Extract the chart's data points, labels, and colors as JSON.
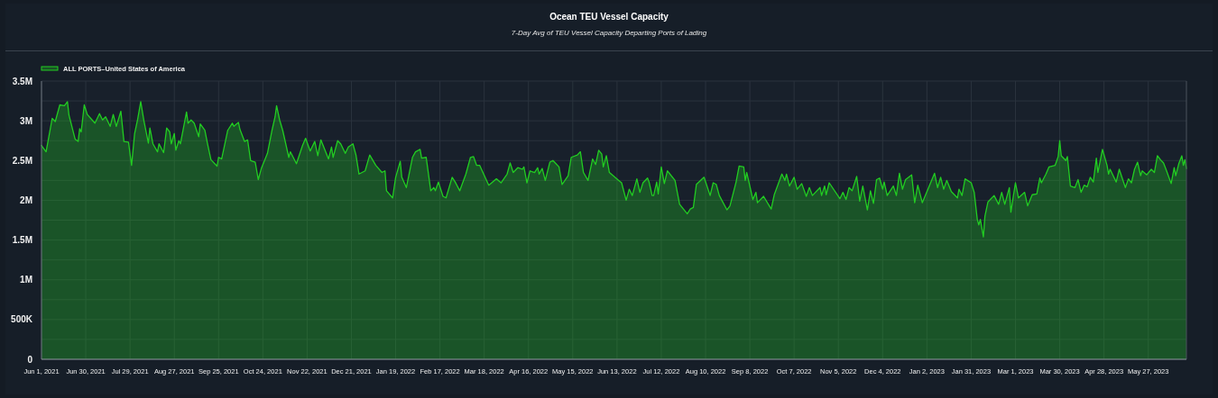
{
  "chart_data": {
    "type": "area",
    "title": "Ocean TEU Vessel Capacity",
    "subtitle": "7-Day Avg of TEU Vessel Capacity Departing Ports of Lading",
    "x": [
      "2021-06-01",
      "2021-06-04",
      "2021-06-08",
      "2021-06-10",
      "2021-06-13",
      "2021-06-16",
      "2021-06-18",
      "2021-06-19",
      "2021-06-23",
      "2021-06-25",
      "2021-06-26",
      "2021-06-27",
      "2021-06-29",
      "2021-07-01",
      "2021-07-06",
      "2021-07-09",
      "2021-07-11",
      "2021-07-13",
      "2021-07-16",
      "2021-07-18",
      "2021-07-20",
      "2021-07-23",
      "2021-07-25",
      "2021-07-28",
      "2021-07-30",
      "2021-08-01",
      "2021-08-03",
      "2021-08-05",
      "2021-08-07",
      "2021-08-10",
      "2021-08-11",
      "2021-08-13",
      "2021-08-16",
      "2021-08-17",
      "2021-08-20",
      "2021-08-22",
      "2021-08-24",
      "2021-08-25",
      "2021-08-27",
      "2021-08-28",
      "2021-08-30",
      "2021-08-31",
      "2021-09-04",
      "2021-09-05",
      "2021-09-07",
      "2021-09-09",
      "2021-09-12",
      "2021-09-13",
      "2021-09-16",
      "2021-09-18",
      "2021-09-20",
      "2021-09-24",
      "2021-09-25",
      "2021-09-27",
      "2021-10-01",
      "2021-10-04",
      "2021-10-05",
      "2021-10-08",
      "2021-10-09",
      "2021-10-12",
      "2021-10-14",
      "2021-10-16",
      "2021-10-19",
      "2021-10-21",
      "2021-10-23",
      "2021-10-27",
      "2021-10-30",
      "2021-11-01",
      "2021-11-02",
      "2021-11-04",
      "2021-11-06",
      "2021-11-10",
      "2021-11-11",
      "2021-11-15",
      "2021-11-19",
      "2021-11-21",
      "2021-11-24",
      "2021-11-27",
      "2021-11-29",
      "2021-12-01",
      "2021-12-06",
      "2021-12-08",
      "2021-12-09",
      "2021-12-12",
      "2021-12-14",
      "2021-12-17",
      "2021-12-19",
      "2021-12-22",
      "2021-12-24",
      "2021-12-26",
      "2021-12-30",
      "2022-01-02",
      "2022-01-06",
      "2022-01-10",
      "2022-01-12",
      "2022-01-13",
      "2022-01-17",
      "2022-01-19",
      "2022-01-22",
      "2022-01-23",
      "2022-01-26",
      "2022-01-30",
      "2022-02-01",
      "2022-02-04",
      "2022-02-05",
      "2022-02-08",
      "2022-02-11",
      "2022-02-13",
      "2022-02-14",
      "2022-02-16",
      "2022-02-19",
      "2022-02-21",
      "2022-02-25",
      "2022-02-27",
      "2022-03-02",
      "2022-03-06",
      "2022-03-09",
      "2022-03-11",
      "2022-03-13",
      "2022-03-15",
      "2022-03-21",
      "2022-03-26",
      "2022-03-29",
      "2022-04-02",
      "2022-04-04",
      "2022-04-06",
      "2022-04-09",
      "2022-04-12",
      "2022-04-13",
      "2022-04-15",
      "2022-04-17",
      "2022-04-20",
      "2022-04-22",
      "2022-04-23",
      "2022-04-25",
      "2022-04-27",
      "2022-04-30",
      "2022-05-02",
      "2022-05-04",
      "2022-05-06",
      "2022-05-08",
      "2022-05-12",
      "2022-05-14",
      "2022-05-18",
      "2022-05-20",
      "2022-05-22",
      "2022-05-25",
      "2022-05-28",
      "2022-05-30",
      "2022-06-01",
      "2022-06-03",
      "2022-06-04",
      "2022-06-06",
      "2022-06-08",
      "2022-06-14",
      "2022-06-16",
      "2022-06-19",
      "2022-06-21",
      "2022-06-23",
      "2022-06-26",
      "2022-06-28",
      "2022-06-30",
      "2022-07-03",
      "2022-07-04",
      "2022-07-06",
      "2022-07-07",
      "2022-07-09",
      "2022-07-10",
      "2022-07-12",
      "2022-07-14",
      "2022-07-16",
      "2022-07-21",
      "2022-07-24",
      "2022-07-29",
      "2022-07-31",
      "2022-08-02",
      "2022-08-04",
      "2022-08-09",
      "2022-08-13",
      "2022-08-15",
      "2022-08-17",
      "2022-08-19",
      "2022-08-24",
      "2022-08-26",
      "2022-08-30",
      "2022-09-01",
      "2022-09-04",
      "2022-09-05",
      "2022-09-06",
      "2022-09-10",
      "2022-09-12",
      "2022-09-13",
      "2022-09-17",
      "2022-09-22",
      "2022-09-24",
      "2022-09-29",
      "2022-10-01",
      "2022-10-02",
      "2022-10-04",
      "2022-10-07",
      "2022-10-09",
      "2022-10-12",
      "2022-10-15",
      "2022-10-17",
      "2022-10-19",
      "2022-10-24",
      "2022-10-25",
      "2022-10-27",
      "2022-10-28",
      "2022-10-30",
      "2022-11-06",
      "2022-11-08",
      "2022-11-10",
      "2022-11-12",
      "2022-11-14",
      "2022-11-17",
      "2022-11-19",
      "2022-11-21",
      "2022-11-24",
      "2022-11-26",
      "2022-11-28",
      "2022-11-30",
      "2022-12-02",
      "2022-12-04",
      "2022-12-05",
      "2022-12-07",
      "2022-12-11",
      "2022-12-13",
      "2022-12-15",
      "2022-12-17",
      "2022-12-19",
      "2022-12-23",
      "2022-12-25",
      "2022-12-27",
      "2022-12-30",
      "2023-01-04",
      "2023-01-07",
      "2023-01-09",
      "2023-01-11",
      "2023-01-13",
      "2023-01-15",
      "2023-01-18",
      "2023-01-22",
      "2023-01-23",
      "2023-01-25",
      "2023-01-27",
      "2023-01-31",
      "2023-02-02",
      "2023-02-04",
      "2023-02-05",
      "2023-02-06",
      "2023-02-08",
      "2023-02-09",
      "2023-02-11",
      "2023-02-15",
      "2023-02-18",
      "2023-02-20",
      "2023-02-22",
      "2023-02-25",
      "2023-02-26",
      "2023-03-01",
      "2023-03-03",
      "2023-03-07",
      "2023-03-09",
      "2023-03-12",
      "2023-03-15",
      "2023-03-17",
      "2023-03-18",
      "2023-03-21",
      "2023-03-23",
      "2023-03-27",
      "2023-03-29",
      "2023-03-30",
      "2023-03-31",
      "2023-04-03",
      "2023-04-04",
      "2023-04-06",
      "2023-04-09",
      "2023-04-11",
      "2023-04-13",
      "2023-04-15",
      "2023-04-17",
      "2023-04-19",
      "2023-04-21",
      "2023-04-23",
      "2023-04-24",
      "2023-04-27",
      "2023-04-30",
      "2023-05-01",
      "2023-05-02",
      "2023-05-06",
      "2023-05-08",
      "2023-05-12",
      "2023-05-14",
      "2023-05-16",
      "2023-05-18",
      "2023-05-20",
      "2023-05-22",
      "2023-05-23",
      "2023-05-26",
      "2023-05-29",
      "2023-05-31",
      "2023-06-02",
      "2023-06-04",
      "2023-06-06",
      "2023-06-08",
      "2023-06-11",
      "2023-06-13",
      "2023-06-14",
      "2023-06-16",
      "2023-06-18",
      "2023-06-19",
      "2023-06-20",
      "2023-06-21"
    ],
    "series": [
      {
        "name": "ALL PORTS–United States of America",
        "color": "#22cc22",
        "values": [
          2690000,
          2610000,
          3030000,
          2990000,
          3200000,
          3190000,
          3240000,
          3070000,
          2770000,
          2740000,
          2900000,
          2860000,
          3200000,
          3080000,
          2970000,
          3090000,
          3010000,
          3050000,
          2930000,
          3080000,
          2930000,
          3120000,
          2740000,
          2730000,
          2440000,
          2840000,
          3020000,
          3240000,
          3010000,
          2720000,
          2910000,
          2710000,
          2610000,
          2710000,
          2600000,
          2910000,
          2860000,
          2710000,
          2840000,
          2630000,
          2750000,
          2710000,
          3110000,
          2970000,
          3010000,
          2970000,
          2800000,
          2960000,
          2880000,
          2690000,
          2510000,
          2430000,
          2540000,
          2520000,
          2880000,
          2970000,
          2930000,
          2980000,
          2890000,
          2740000,
          2760000,
          2500000,
          2480000,
          2260000,
          2400000,
          2590000,
          2880000,
          3050000,
          3190000,
          3010000,
          2880000,
          2540000,
          2610000,
          2460000,
          2690000,
          2780000,
          2620000,
          2740000,
          2560000,
          2760000,
          2520000,
          2670000,
          2540000,
          2750000,
          2710000,
          2590000,
          2670000,
          2710000,
          2570000,
          2330000,
          2370000,
          2570000,
          2440000,
          2350000,
          2370000,
          2120000,
          2030000,
          2290000,
          2490000,
          2290000,
          2160000,
          2540000,
          2610000,
          2640000,
          2530000,
          2540000,
          2120000,
          2160000,
          2120000,
          2230000,
          2050000,
          2030000,
          2290000,
          2230000,
          2120000,
          2330000,
          2540000,
          2550000,
          2440000,
          2440000,
          2190000,
          2270000,
          2220000,
          2330000,
          2470000,
          2350000,
          2410000,
          2390000,
          2420000,
          2220000,
          2370000,
          2350000,
          2410000,
          2330000,
          2400000,
          2250000,
          2480000,
          2500000,
          2460000,
          2420000,
          2200000,
          2310000,
          2540000,
          2570000,
          2610000,
          2350000,
          2250000,
          2520000,
          2450000,
          2630000,
          2580000,
          2420000,
          2560000,
          2350000,
          2250000,
          2220000,
          2000000,
          2140000,
          2060000,
          2270000,
          2100000,
          2220000,
          2280000,
          2230000,
          2060000,
          2060000,
          2230000,
          2080000,
          2420000,
          2210000,
          2370000,
          2250000,
          1950000,
          1830000,
          1890000,
          1910000,
          2200000,
          2290000,
          2060000,
          2220000,
          2200000,
          2060000,
          1880000,
          1930000,
          2230000,
          2430000,
          2420000,
          2250000,
          2350000,
          2010000,
          2100000,
          1970000,
          2050000,
          1890000,
          2070000,
          2330000,
          2250000,
          2330000,
          2180000,
          2290000,
          2140000,
          2210000,
          2050000,
          2160000,
          2060000,
          2160000,
          2060000,
          2180000,
          2070000,
          2220000,
          2020000,
          2100000,
          2010000,
          2160000,
          2120000,
          2300000,
          1990000,
          2180000,
          1880000,
          2120000,
          1960000,
          2260000,
          2280000,
          2140000,
          2230000,
          2060000,
          2180000,
          2060000,
          2340000,
          2140000,
          2260000,
          2320000,
          1970000,
          2190000,
          1970000,
          2200000,
          2340000,
          2160000,
          2290000,
          2140000,
          2250000,
          2110000,
          2030000,
          2140000,
          2060000,
          2270000,
          2220000,
          2100000,
          1760000,
          1690000,
          1760000,
          1540000,
          1800000,
          1980000,
          2060000,
          1950000,
          2100000,
          1950000,
          2160000,
          1850000,
          2220000,
          2030000,
          2100000,
          1930000,
          2070000,
          2080000,
          2280000,
          2220000,
          2330000,
          2420000,
          2440000,
          2550000,
          2750000,
          2560000,
          2500000,
          2550000,
          2180000,
          2160000,
          2260000,
          2100000,
          2190000,
          2170000,
          2290000,
          2230000,
          2530000,
          2350000,
          2640000,
          2440000,
          2330000,
          2390000,
          2230000,
          2390000,
          2160000,
          2270000,
          2220000,
          2390000,
          2480000,
          2310000,
          2370000,
          2320000,
          2390000,
          2350000,
          2560000,
          2510000,
          2470000,
          2370000,
          2210000,
          2410000,
          2310000,
          2460000,
          2560000,
          2440000,
          2510000,
          2400000
        ]
      }
    ],
    "xlim": [
      "2021-06-01",
      "2023-06-21"
    ],
    "xticks": [
      {
        "value": "2021-06-01",
        "label": "Jun 1, 2021"
      },
      {
        "value": "2021-06-30",
        "label": "Jun 30, 2021"
      },
      {
        "value": "2021-07-29",
        "label": "Jul 29, 2021"
      },
      {
        "value": "2021-08-27",
        "label": "Aug 27, 2021"
      },
      {
        "value": "2021-09-25",
        "label": "Sep 25, 2021"
      },
      {
        "value": "2021-10-24",
        "label": "Oct 24, 2021"
      },
      {
        "value": "2021-11-22",
        "label": "Nov 22, 2021"
      },
      {
        "value": "2021-12-21",
        "label": "Dec 21, 2021"
      },
      {
        "value": "2022-01-19",
        "label": "Jan 19, 2022"
      },
      {
        "value": "2022-02-17",
        "label": "Feb 17, 2022"
      },
      {
        "value": "2022-03-18",
        "label": "Mar 18, 2022"
      },
      {
        "value": "2022-04-16",
        "label": "Apr 16, 2022"
      },
      {
        "value": "2022-05-15",
        "label": "May 15, 2022"
      },
      {
        "value": "2022-06-13",
        "label": "Jun 13, 2022"
      },
      {
        "value": "2022-07-12",
        "label": "Jul 12, 2022"
      },
      {
        "value": "2022-08-10",
        "label": "Aug 10, 2022"
      },
      {
        "value": "2022-09-08",
        "label": "Sep 8, 2022"
      },
      {
        "value": "2022-10-07",
        "label": "Oct 7, 2022"
      },
      {
        "value": "2022-11-05",
        "label": "Nov 5, 2022"
      },
      {
        "value": "2022-12-04",
        "label": "Dec 4, 2022"
      },
      {
        "value": "2023-01-02",
        "label": "Jan 2, 2023"
      },
      {
        "value": "2023-01-31",
        "label": "Jan 31, 2023"
      },
      {
        "value": "2023-03-01",
        "label": "Mar 1, 2023"
      },
      {
        "value": "2023-03-30",
        "label": "Mar 30, 2023"
      },
      {
        "value": "2023-04-28",
        "label": "Apr 28, 2023"
      },
      {
        "value": "2023-05-27",
        "label": "May 27, 2023"
      }
    ],
    "ylim": [
      0,
      3500000
    ],
    "yticks": [
      0,
      {
        "value": 250000,
        "label": null
      },
      {
        "value": 500000,
        "label": "500K"
      },
      {
        "value": 750000,
        "label": null
      },
      {
        "value": 1000000,
        "label": "1M"
      },
      {
        "value": 1250000,
        "label": null
      },
      {
        "value": 1500000,
        "label": "1.5M"
      },
      {
        "value": 1750000,
        "label": null
      },
      {
        "value": 2000000,
        "label": "2M"
      },
      {
        "value": 2250000,
        "label": null
      },
      {
        "value": 2500000,
        "label": "2.5M"
      },
      {
        "value": 2750000,
        "label": null
      },
      {
        "value": 3000000,
        "label": "3M"
      },
      {
        "value": 3250000,
        "label": null
      },
      {
        "value": 3500000,
        "label": "3.5M"
      }
    ],
    "grid": true,
    "legend": "top left"
  }
}
